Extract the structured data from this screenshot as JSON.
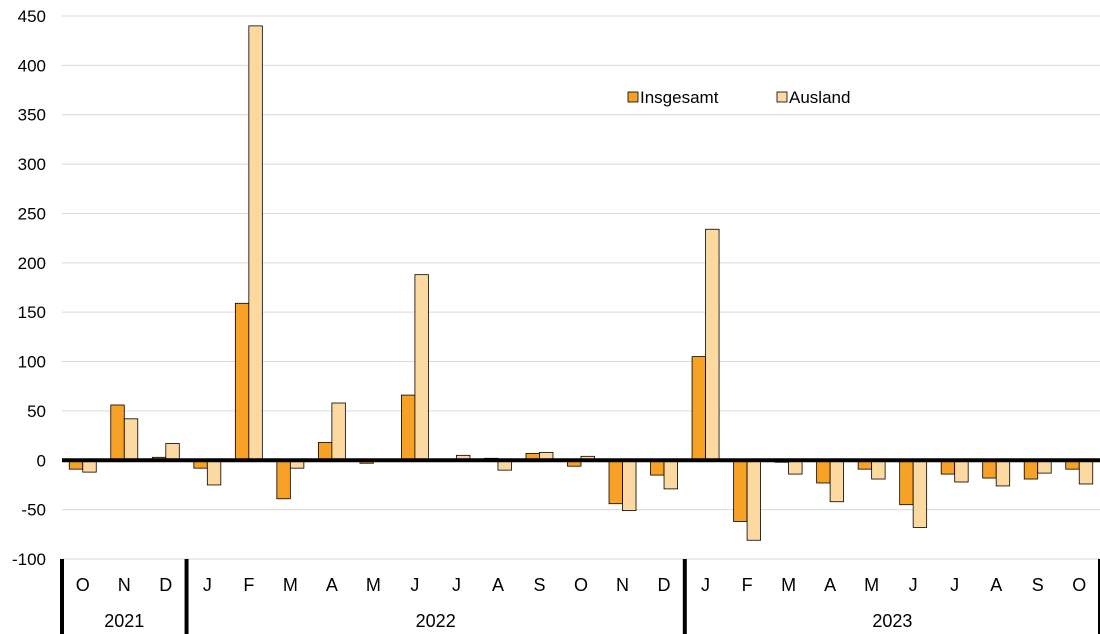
{
  "chart_data": {
    "type": "bar",
    "title": "",
    "xlabel": "",
    "ylabel": "",
    "ylim": [
      -100,
      450
    ],
    "yticks": [
      -100,
      -50,
      0,
      50,
      100,
      150,
      200,
      250,
      300,
      350,
      400,
      450
    ],
    "grid": true,
    "legend_position": "top-right",
    "categories": [
      "O",
      "N",
      "D",
      "J",
      "F",
      "M",
      "A",
      "M",
      "J",
      "J",
      "A",
      "S",
      "O",
      "N",
      "D",
      "J",
      "F",
      "M",
      "A",
      "M",
      "J",
      "J",
      "A",
      "S",
      "O"
    ],
    "years": [
      {
        "label": "2021",
        "start": 0,
        "end": 2
      },
      {
        "label": "2022",
        "start": 3,
        "end": 14
      },
      {
        "label": "2023",
        "start": 15,
        "end": 24
      }
    ],
    "series": [
      {
        "name": "Insgesamt",
        "color": "#F7A127",
        "values": [
          -9,
          56,
          3,
          -8,
          159,
          -39,
          18,
          -3,
          66,
          1,
          2,
          7,
          -6,
          -44,
          -15,
          105,
          -62,
          -2,
          -23,
          -9,
          -45,
          -14,
          -18,
          -19,
          -9
        ]
      },
      {
        "name": "Ausland",
        "color": "#FDD9A2",
        "values": [
          -12,
          42,
          17,
          -25,
          440,
          -8,
          58,
          -1,
          188,
          5,
          -10,
          8,
          4,
          -51,
          -29,
          234,
          -81,
          -14,
          -42,
          -19,
          -68,
          -22,
          -26,
          -13,
          -24
        ]
      }
    ]
  }
}
